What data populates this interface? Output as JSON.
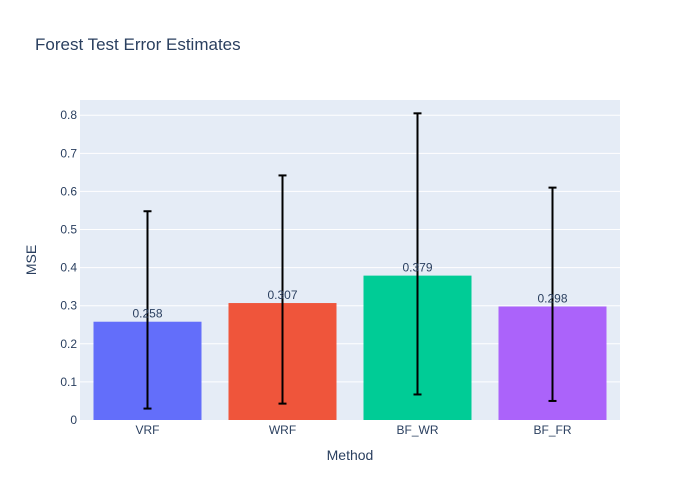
{
  "chart_data": {
    "type": "bar",
    "title": "Forest Test Error Estimates",
    "xlabel": "Method",
    "ylabel": "MSE",
    "categories": [
      "VRF",
      "WRF",
      "BF_WR",
      "BF_FR"
    ],
    "values": [
      0.258,
      0.307,
      0.379,
      0.298
    ],
    "value_labels": [
      "0.258",
      "0.307",
      "0.379",
      "0.298"
    ],
    "error_low": [
      0.03,
      0.043,
      0.067,
      0.05
    ],
    "error_high": [
      0.548,
      0.642,
      0.805,
      0.61
    ],
    "colors": [
      "#636efa",
      "#ef553b",
      "#00cc96",
      "#ab63fa"
    ],
    "ylim": [
      0,
      0.84
    ],
    "yticks": [
      0,
      0.1,
      0.2,
      0.3,
      0.4,
      0.5,
      0.6,
      0.7,
      0.8
    ],
    "ytick_labels": [
      "0",
      "0.1",
      "0.2",
      "0.3",
      "0.4",
      "0.5",
      "0.6",
      "0.7",
      "0.8"
    ],
    "grid": true,
    "plot_background": "#e5ecf6",
    "error_bar_color": "#000000"
  }
}
